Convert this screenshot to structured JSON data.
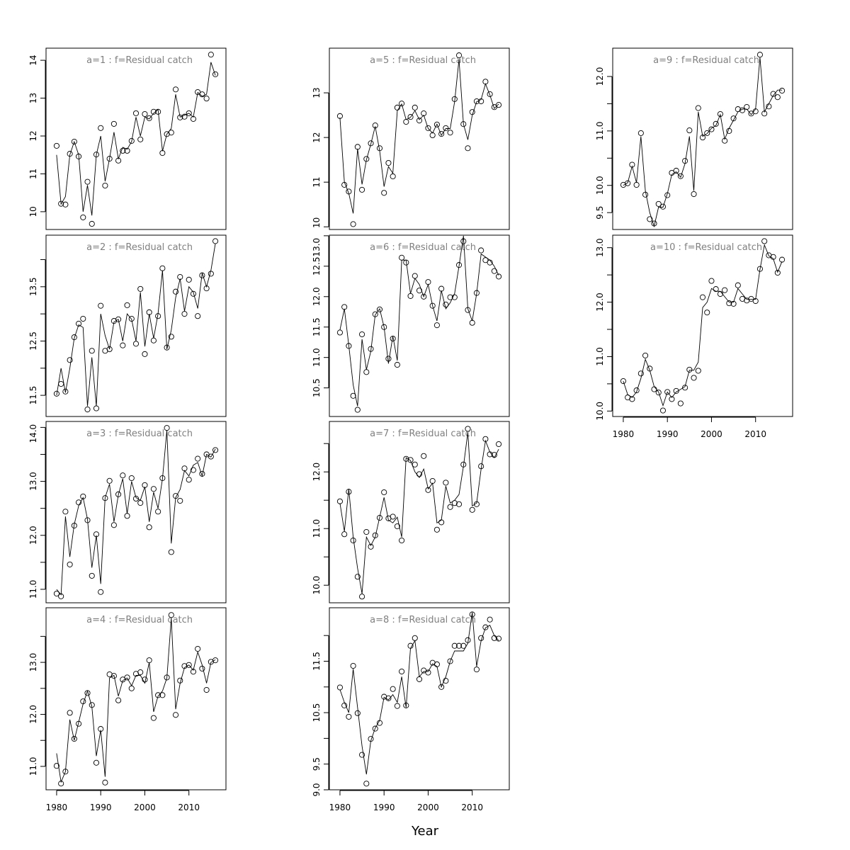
{
  "chart_data": {
    "type": "line",
    "xlabel": "Year",
    "x": [
      1980,
      1981,
      1982,
      1983,
      1984,
      1985,
      1986,
      1987,
      1988,
      1989,
      1990,
      1991,
      1992,
      1993,
      1994,
      1995,
      1996,
      1997,
      1998,
      1999,
      2000,
      2001,
      2002,
      2003,
      2004,
      2005,
      2006,
      2007,
      2008,
      2009,
      2010,
      2011,
      2012,
      2013,
      2014,
      2015,
      2016
    ],
    "xlim": [
      1977.6,
      2018.4
    ],
    "xticks": [
      1980,
      1990,
      2000,
      2010
    ],
    "point_style": "open circles (observed)",
    "line_style": "solid black line (fitted)",
    "panels": [
      {
        "title": "a=1  :  f=Residual catch",
        "ylim": [
          9.53,
          14.32
        ],
        "yticks": [
          10,
          11,
          12,
          13,
          14
        ],
        "ytick_labels": [
          "10",
          "11",
          "12",
          "13",
          "14"
        ],
        "observed": [
          11.74,
          10.21,
          10.19,
          11.53,
          11.85,
          11.46,
          9.85,
          10.79,
          9.68,
          11.51,
          12.21,
          10.69,
          11.4,
          12.32,
          11.35,
          11.61,
          11.61,
          11.87,
          12.6,
          11.91,
          12.58,
          12.47,
          12.64,
          12.64,
          11.55,
          12.05,
          12.09,
          13.23,
          12.49,
          12.51,
          12.6,
          12.45,
          13.16,
          13.1,
          12.99,
          14.15,
          13.63
        ],
        "fitted": [
          11.5,
          10.2,
          10.4,
          11.5,
          11.85,
          11.5,
          10.0,
          10.7,
          9.9,
          11.5,
          12.0,
          10.8,
          11.4,
          12.1,
          11.4,
          11.7,
          11.65,
          11.85,
          12.5,
          12.0,
          12.5,
          12.45,
          12.6,
          12.7,
          11.6,
          12.05,
          12.2,
          13.1,
          12.5,
          12.55,
          12.6,
          12.5,
          13.15,
          13.05,
          13.1,
          13.95,
          13.6
        ]
      },
      {
        "title": "a=2  :  f=Residual catch",
        "ylim": [
          11.11,
          14.45
        ],
        "yticks": [
          11.5,
          12.0,
          12.5,
          13.0,
          13.5,
          14.0
        ],
        "ytick_labels": [
          "11.5",
          "",
          "12.5",
          "",
          "13.5",
          ""
        ],
        "observed": [
          11.53,
          11.71,
          11.57,
          12.15,
          12.57,
          12.82,
          12.91,
          11.24,
          12.32,
          11.26,
          13.15,
          12.32,
          12.35,
          12.87,
          12.9,
          12.42,
          13.16,
          12.91,
          12.45,
          13.46,
          12.26,
          13.03,
          12.51,
          12.96,
          13.84,
          12.38,
          12.58,
          13.41,
          13.68,
          13.0,
          13.63,
          13.37,
          12.96,
          13.71,
          13.47,
          13.74,
          14.34
        ],
        "fitted": [
          11.5,
          12.0,
          11.55,
          12.0,
          12.55,
          12.8,
          12.75,
          11.3,
          12.2,
          11.3,
          13.0,
          12.6,
          12.35,
          12.85,
          12.9,
          12.5,
          13.0,
          12.9,
          12.5,
          13.4,
          12.4,
          13.0,
          12.55,
          13.0,
          13.8,
          12.35,
          12.7,
          13.3,
          13.65,
          13.05,
          13.5,
          13.4,
          13.1,
          13.75,
          13.5,
          13.8,
          14.3
        ]
      },
      {
        "title": "a=3  :  f=Residual catch",
        "ylim": [
          10.75,
          14.11
        ],
        "yticks": [
          11.0,
          11.5,
          12.0,
          12.5,
          13.0,
          13.5,
          14.0
        ],
        "ytick_labels": [
          "11.0",
          "",
          "12.0",
          "",
          "13.0",
          "",
          "14.0"
        ],
        "observed": [
          10.92,
          10.87,
          12.44,
          11.46,
          12.18,
          12.61,
          12.72,
          12.28,
          11.25,
          12.02,
          10.95,
          12.69,
          13.01,
          12.19,
          12.76,
          13.11,
          12.36,
          13.06,
          12.68,
          12.6,
          12.93,
          12.15,
          12.86,
          12.44,
          13.06,
          13.99,
          11.69,
          12.73,
          12.64,
          13.24,
          13.03,
          13.21,
          13.42,
          13.14,
          13.5,
          13.46,
          13.58
        ],
        "fitted": [
          11.0,
          10.9,
          12.35,
          11.6,
          12.2,
          12.55,
          12.7,
          12.3,
          11.4,
          12.0,
          11.1,
          12.7,
          12.95,
          12.25,
          12.75,
          13.05,
          12.4,
          13.0,
          12.7,
          12.65,
          12.9,
          12.25,
          12.8,
          12.5,
          13.05,
          13.95,
          11.85,
          12.7,
          12.85,
          13.2,
          13.1,
          13.3,
          13.35,
          13.1,
          13.5,
          13.45,
          13.6
        ]
      },
      {
        "title": "a=4  :  f=Residual catch",
        "ylim": [
          10.55,
          14.05
        ],
        "yticks": [
          11.0,
          11.5,
          12.0,
          12.5,
          13.0,
          13.5
        ],
        "ytick_labels": [
          "11.0",
          "",
          "12.0",
          "",
          "13.0",
          ""
        ],
        "observed": [
          11.01,
          10.67,
          10.9,
          12.03,
          11.53,
          11.82,
          12.25,
          12.41,
          12.18,
          11.07,
          11.72,
          10.69,
          12.77,
          12.74,
          12.27,
          12.67,
          12.71,
          12.5,
          12.78,
          12.81,
          12.67,
          13.04,
          11.93,
          12.37,
          12.37,
          12.71,
          13.91,
          11.99,
          12.65,
          12.93,
          12.95,
          12.82,
          13.26,
          12.88,
          12.47,
          13.01,
          13.04
        ],
        "fitted": [
          11.25,
          10.7,
          10.9,
          11.9,
          11.5,
          11.85,
          12.2,
          12.45,
          12.15,
          11.2,
          11.7,
          10.8,
          12.7,
          12.75,
          12.35,
          12.65,
          12.7,
          12.55,
          12.75,
          12.75,
          12.6,
          13.0,
          12.05,
          12.35,
          12.45,
          12.7,
          13.85,
          12.1,
          12.6,
          12.9,
          12.95,
          12.85,
          13.2,
          12.95,
          12.6,
          13.0,
          13.05
        ]
      },
      {
        "title": "a=5  :  f=Residual catch",
        "ylim": [
          9.94,
          14.0
        ],
        "yticks": [
          10,
          11,
          12,
          13
        ],
        "ytick_labels": [
          "10",
          "11",
          "12",
          "13"
        ],
        "observed": [
          12.48,
          10.94,
          10.79,
          10.06,
          11.79,
          10.83,
          11.52,
          11.87,
          12.27,
          11.76,
          10.76,
          11.43,
          11.13,
          12.67,
          12.76,
          12.35,
          12.46,
          12.67,
          12.38,
          12.54,
          12.21,
          12.05,
          12.29,
          12.08,
          12.21,
          12.11,
          12.86,
          13.84,
          12.3,
          11.76,
          12.57,
          12.81,
          12.81,
          13.25,
          12.97,
          12.68,
          12.73
        ],
        "fitted": [
          12.45,
          11.0,
          10.75,
          10.3,
          11.75,
          10.95,
          11.5,
          11.85,
          12.25,
          11.7,
          10.9,
          11.35,
          11.2,
          12.6,
          12.75,
          12.4,
          12.45,
          12.6,
          12.4,
          12.5,
          12.2,
          12.1,
          12.3,
          12.05,
          12.2,
          12.2,
          12.8,
          13.75,
          12.3,
          11.95,
          12.5,
          12.8,
          12.85,
          13.2,
          12.95,
          12.65,
          12.75
        ]
      },
      {
        "title": "a=6  :  f=Residual catch",
        "ylim": [
          10.03,
          13.01
        ],
        "yticks": [
          10.5,
          11.0,
          11.5,
          12.0,
          12.5,
          13.0
        ],
        "ytick_labels": [
          "10.5",
          "11.0",
          "11.5",
          "12.0",
          "12.5",
          "13.0"
        ],
        "observed": [
          11.41,
          11.83,
          11.19,
          10.37,
          10.14,
          11.38,
          10.76,
          11.14,
          11.71,
          11.79,
          11.5,
          10.98,
          11.31,
          10.88,
          12.64,
          12.56,
          12.01,
          12.34,
          12.1,
          12.0,
          12.24,
          11.85,
          11.53,
          12.13,
          11.87,
          11.99,
          11.99,
          12.52,
          12.91,
          11.78,
          11.57,
          12.06,
          12.76,
          12.6,
          12.56,
          12.42,
          12.33
        ],
        "fitted": [
          11.45,
          11.8,
          11.2,
          10.55,
          10.2,
          11.3,
          10.8,
          11.1,
          11.7,
          11.8,
          11.5,
          10.9,
          11.35,
          10.95,
          12.6,
          12.6,
          12.05,
          12.3,
          12.2,
          12.0,
          12.2,
          11.85,
          11.6,
          12.1,
          11.8,
          11.9,
          12.05,
          12.5,
          13.0,
          11.8,
          11.6,
          12.05,
          12.7,
          12.65,
          12.6,
          12.5,
          12.35
        ]
      },
      {
        "title": "a=7  :  f=Residual catch",
        "ylim": [
          9.69,
          12.89
        ],
        "yticks": [
          10.0,
          10.5,
          11.0,
          11.5,
          12.0,
          12.5
        ],
        "ytick_labels": [
          "10.0",
          "",
          "11.0",
          "",
          "12.0",
          ""
        ],
        "observed": [
          11.48,
          10.9,
          11.65,
          10.79,
          10.15,
          9.8,
          10.94,
          10.68,
          10.88,
          11.19,
          11.64,
          11.18,
          11.21,
          11.04,
          10.79,
          12.23,
          12.21,
          12.13,
          11.96,
          12.28,
          11.68,
          11.84,
          10.98,
          11.11,
          11.81,
          11.38,
          11.45,
          11.43,
          12.13,
          12.76,
          11.33,
          11.43,
          12.1,
          12.58,
          12.31,
          12.3,
          12.49
        ],
        "fitted": [
          11.45,
          10.95,
          11.7,
          10.85,
          10.3,
          9.85,
          10.85,
          10.7,
          10.85,
          11.2,
          11.55,
          11.15,
          11.1,
          11.2,
          10.85,
          12.25,
          12.2,
          12.0,
          11.9,
          12.05,
          11.7,
          11.8,
          11.1,
          11.15,
          11.75,
          11.45,
          11.5,
          11.6,
          12.1,
          12.7,
          11.4,
          11.45,
          12.05,
          12.55,
          12.35,
          12.25,
          12.4
        ]
      },
      {
        "title": "a=8  :  f=Residual catch",
        "ylim": [
          9.0,
          12.54
        ],
        "yticks": [
          9.0,
          9.5,
          10.0,
          10.5,
          11.0,
          11.5,
          12.0
        ],
        "ytick_labels": [
          "9.0",
          "9.5",
          "",
          "10.5",
          "",
          "11.5",
          ""
        ],
        "observed": [
          10.99,
          10.64,
          10.42,
          11.41,
          10.49,
          9.68,
          9.12,
          9.99,
          10.19,
          10.3,
          10.81,
          10.78,
          10.96,
          10.63,
          11.3,
          10.64,
          11.8,
          11.95,
          11.15,
          11.32,
          11.28,
          11.47,
          11.44,
          11.0,
          11.12,
          11.5,
          11.8,
          11.8,
          11.8,
          11.91,
          12.41,
          11.34,
          11.95,
          12.16,
          12.31,
          11.95,
          11.94
        ],
        "fitted": [
          10.95,
          10.7,
          10.5,
          11.35,
          10.6,
          9.85,
          9.3,
          9.95,
          10.2,
          10.35,
          10.8,
          10.75,
          10.85,
          10.7,
          11.2,
          10.6,
          11.75,
          11.9,
          11.2,
          11.3,
          11.3,
          11.45,
          11.4,
          11.0,
          11.2,
          11.5,
          11.7,
          11.7,
          11.7,
          11.85,
          12.45,
          11.4,
          11.9,
          12.15,
          12.2,
          12.0,
          11.9
        ]
      },
      {
        "title": "a=9  :  f=Residual catch",
        "ylim": [
          9.19,
          12.52
        ],
        "yticks": [
          9.5,
          10.0,
          10.5,
          11.0,
          11.5,
          12.0
        ],
        "ytick_labels": [
          "9.5",
          "10.0",
          "",
          "11.0",
          "",
          "12.0"
        ],
        "observed": [
          10.01,
          10.04,
          10.38,
          10.01,
          10.96,
          9.83,
          9.38,
          9.3,
          9.66,
          9.61,
          9.82,
          10.23,
          10.27,
          10.17,
          10.45,
          11.01,
          9.84,
          11.42,
          10.88,
          10.96,
          11.03,
          11.13,
          11.31,
          10.82,
          11.0,
          11.23,
          11.4,
          11.38,
          11.44,
          11.32,
          11.36,
          12.4,
          11.32,
          11.45,
          11.68,
          11.62,
          11.74
        ],
        "fitted": [
          10.0,
          10.05,
          10.35,
          10.05,
          10.9,
          9.9,
          9.5,
          9.25,
          9.6,
          9.6,
          9.85,
          10.2,
          10.25,
          10.15,
          10.4,
          10.9,
          9.9,
          11.35,
          10.9,
          10.95,
          11.05,
          11.1,
          11.3,
          10.85,
          11.05,
          11.2,
          11.35,
          11.4,
          11.4,
          11.3,
          11.4,
          12.35,
          11.35,
          11.5,
          11.65,
          11.75,
          11.75
        ]
      },
      {
        "title": "a=10  :  f=Residual catch",
        "ylim": [
          9.9,
          13.23
        ],
        "yticks": [
          10.0,
          10.5,
          11.0,
          11.5,
          12.0,
          12.5,
          13.0
        ],
        "ytick_labels": [
          "10.0",
          "",
          "11.0",
          "",
          "12.0",
          "",
          "13.0"
        ],
        "observed": [
          10.55,
          10.25,
          10.22,
          10.38,
          10.69,
          11.02,
          10.78,
          10.4,
          10.34,
          10.01,
          10.35,
          10.22,
          10.37,
          10.14,
          10.43,
          10.76,
          10.61,
          10.74,
          12.09,
          11.81,
          12.39,
          12.24,
          12.15,
          12.22,
          11.98,
          11.97,
          12.31,
          12.06,
          12.03,
          12.06,
          12.02,
          12.61,
          13.12,
          12.86,
          12.83,
          12.54,
          12.78
        ],
        "fitted": [
          10.55,
          10.3,
          10.25,
          10.35,
          10.6,
          10.95,
          10.75,
          10.45,
          10.35,
          10.1,
          10.35,
          10.25,
          10.35,
          10.4,
          10.45,
          10.75,
          10.75,
          10.9,
          11.9,
          12.0,
          12.25,
          12.2,
          12.2,
          12.1,
          12.0,
          12.0,
          12.25,
          12.15,
          12.05,
          12.05,
          12.05,
          12.6,
          13.05,
          12.85,
          12.8,
          12.55,
          12.75
        ]
      }
    ],
    "colors": {
      "title": "#808080",
      "marks": "#000000"
    },
    "grid": false
  }
}
